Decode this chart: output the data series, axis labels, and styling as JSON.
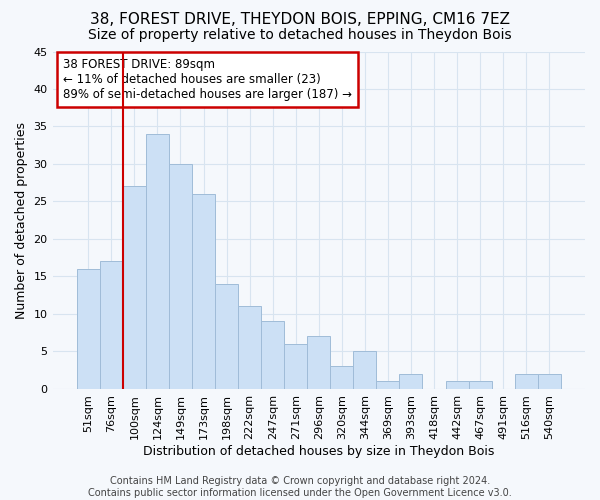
{
  "title": "38, FOREST DRIVE, THEYDON BOIS, EPPING, CM16 7EZ",
  "subtitle": "Size of property relative to detached houses in Theydon Bois",
  "xlabel": "Distribution of detached houses by size in Theydon Bois",
  "ylabel": "Number of detached properties",
  "categories": [
    "51sqm",
    "76sqm",
    "100sqm",
    "124sqm",
    "149sqm",
    "173sqm",
    "198sqm",
    "222sqm",
    "247sqm",
    "271sqm",
    "296sqm",
    "320sqm",
    "344sqm",
    "369sqm",
    "393sqm",
    "418sqm",
    "442sqm",
    "467sqm",
    "491sqm",
    "516sqm",
    "540sqm"
  ],
  "values": [
    16,
    17,
    27,
    34,
    30,
    26,
    14,
    11,
    9,
    6,
    7,
    3,
    5,
    1,
    2,
    0,
    1,
    1,
    0,
    2,
    2
  ],
  "bar_color": "#cce0f5",
  "bar_edge_color": "#a0bcd8",
  "redline_x": 2.0,
  "ylim": [
    0,
    45
  ],
  "yticks": [
    0,
    5,
    10,
    15,
    20,
    25,
    30,
    35,
    40,
    45
  ],
  "annotation_text": "38 FOREST DRIVE: 89sqm\n← 11% of detached houses are smaller (23)\n89% of semi-detached houses are larger (187) →",
  "annotation_box_facecolor": "#ffffff",
  "annotation_box_edgecolor": "#cc0000",
  "footer": "Contains HM Land Registry data © Crown copyright and database right 2024.\nContains public sector information licensed under the Open Government Licence v3.0.",
  "bg_color": "#f5f8fc",
  "plot_bg_color": "#f5f8fc",
  "grid_color": "#d8e4f0",
  "title_fontsize": 11,
  "subtitle_fontsize": 10,
  "tick_fontsize": 8,
  "label_fontsize": 9,
  "footer_fontsize": 7
}
